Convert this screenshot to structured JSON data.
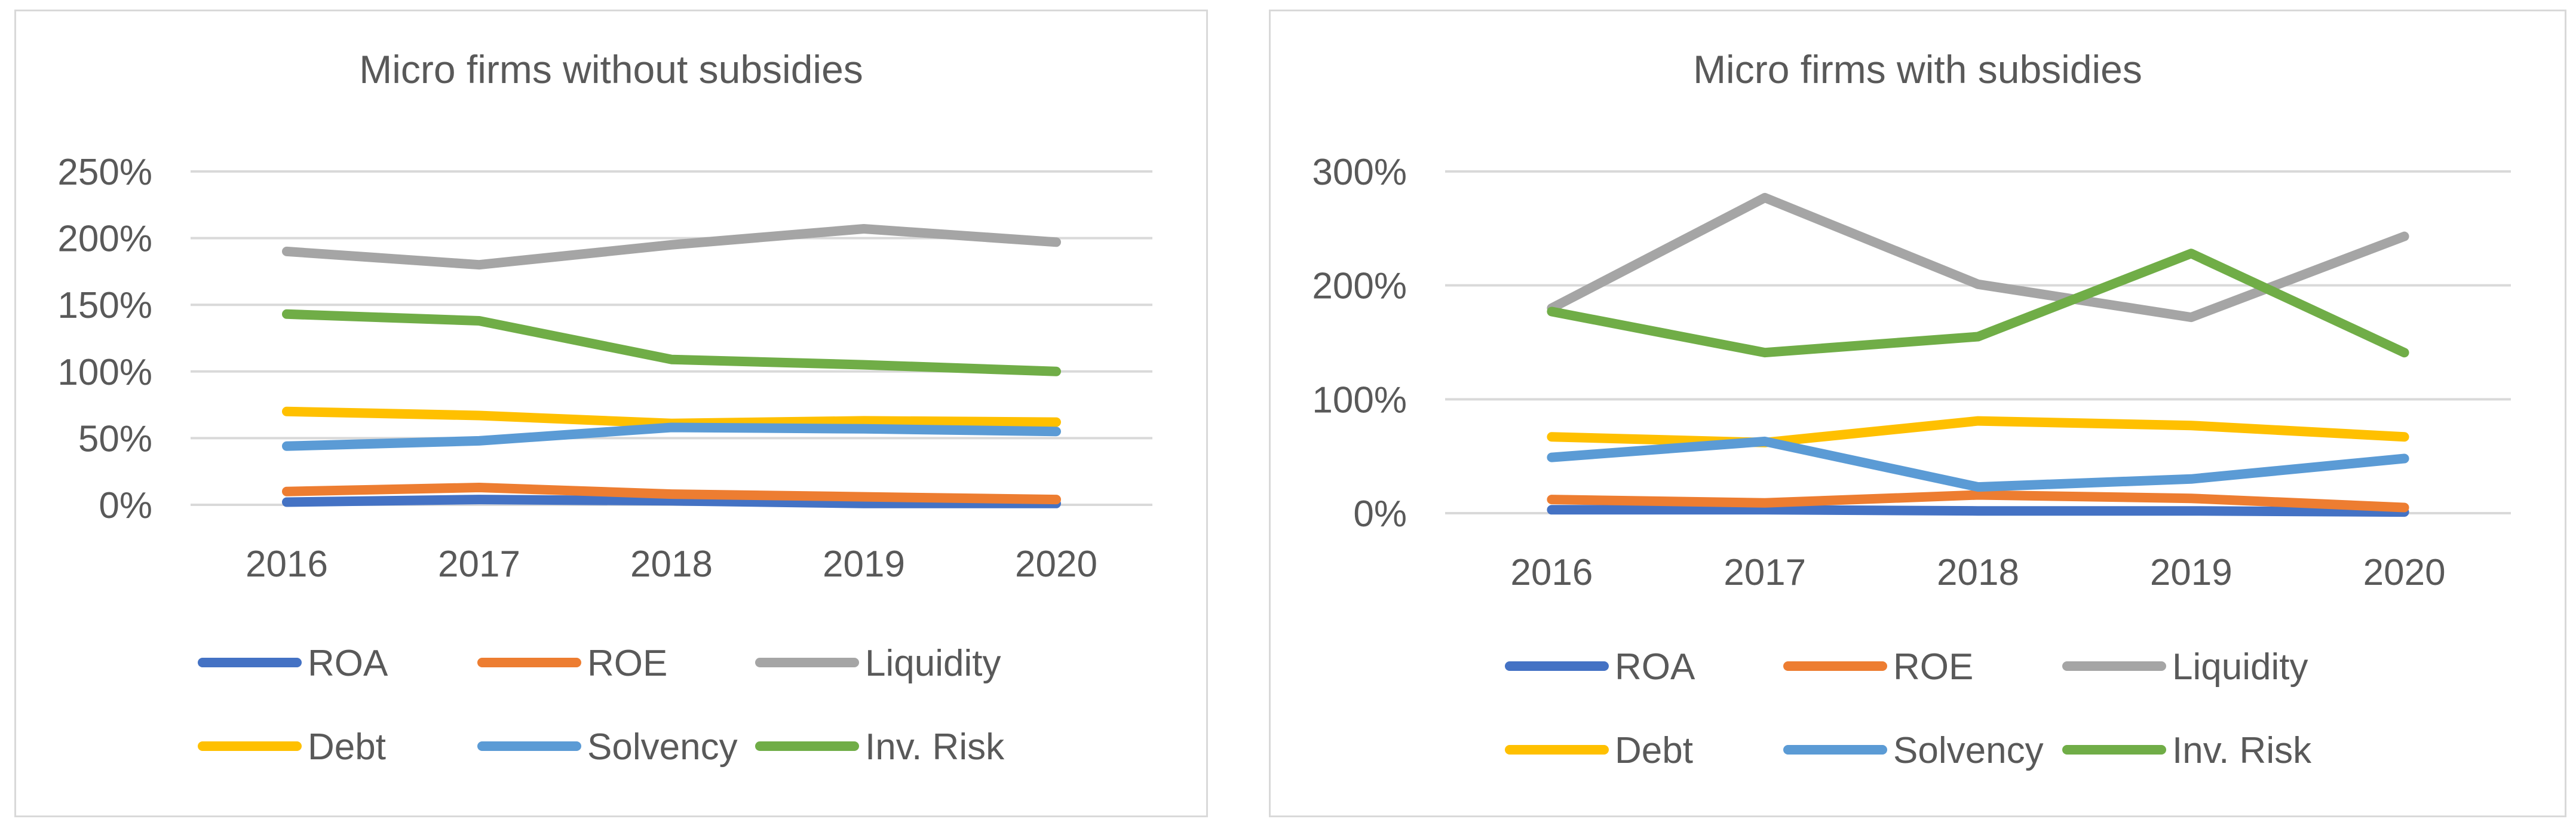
{
  "chart_data": [
    {
      "type": "line",
      "title": "Micro firms without subsidies",
      "categories": [
        "2016",
        "2017",
        "2018",
        "2019",
        "2020"
      ],
      "xlabel": "",
      "ylabel": "",
      "ylim": [
        0,
        2.5
      ],
      "yticks": [
        0,
        0.5,
        1.0,
        1.5,
        2.0,
        2.5
      ],
      "ytick_labels": [
        "0%",
        "50%",
        "100%",
        "150%",
        "200%",
        "250%"
      ],
      "grid": true,
      "legend_position": "bottom",
      "series": [
        {
          "name": "ROA",
          "color": "#4472C4",
          "values": [
            0.02,
            0.04,
            0.03,
            0.01,
            0.01
          ]
        },
        {
          "name": "ROE",
          "color": "#ED7D31",
          "values": [
            0.1,
            0.13,
            0.08,
            0.06,
            0.04
          ]
        },
        {
          "name": "Liquidity",
          "color": "#A5A5A5",
          "values": [
            1.9,
            1.8,
            1.95,
            2.07,
            1.97
          ]
        },
        {
          "name": "Debt",
          "color": "#FFC000",
          "values": [
            0.7,
            0.67,
            0.61,
            0.63,
            0.62
          ]
        },
        {
          "name": "Solvency",
          "color": "#5B9BD5",
          "values": [
            0.44,
            0.48,
            0.58,
            0.57,
            0.55
          ]
        },
        {
          "name": "Inv. Risk",
          "color": "#70AD47",
          "values": [
            1.43,
            1.38,
            1.09,
            1.05,
            1.0
          ]
        }
      ]
    },
    {
      "type": "line",
      "title": "Micro firms with subsidies",
      "categories": [
        "2016",
        "2017",
        "2018",
        "2019",
        "2020"
      ],
      "xlabel": "",
      "ylabel": "",
      "ylim": [
        0,
        3.0
      ],
      "yticks": [
        0,
        1.0,
        2.0,
        3.0
      ],
      "ytick_labels": [
        "0%",
        "100%",
        "200%",
        "300%"
      ],
      "grid": true,
      "legend_position": "bottom",
      "series": [
        {
          "name": "ROA",
          "color": "#4472C4",
          "values": [
            0.03,
            0.03,
            0.02,
            0.02,
            0.01
          ]
        },
        {
          "name": "ROE",
          "color": "#ED7D31",
          "values": [
            0.12,
            0.09,
            0.16,
            0.13,
            0.05
          ]
        },
        {
          "name": "Liquidity",
          "color": "#A5A5A5",
          "values": [
            1.8,
            2.77,
            2.01,
            1.72,
            2.43
          ]
        },
        {
          "name": "Debt",
          "color": "#FFC000",
          "values": [
            0.67,
            0.62,
            0.81,
            0.77,
            0.67
          ]
        },
        {
          "name": "Solvency",
          "color": "#5B9BD5",
          "values": [
            0.49,
            0.63,
            0.23,
            0.3,
            0.48
          ]
        },
        {
          "name": "Inv. Risk",
          "color": "#70AD47",
          "values": [
            1.77,
            1.41,
            1.55,
            2.28,
            1.41
          ]
        }
      ]
    }
  ]
}
